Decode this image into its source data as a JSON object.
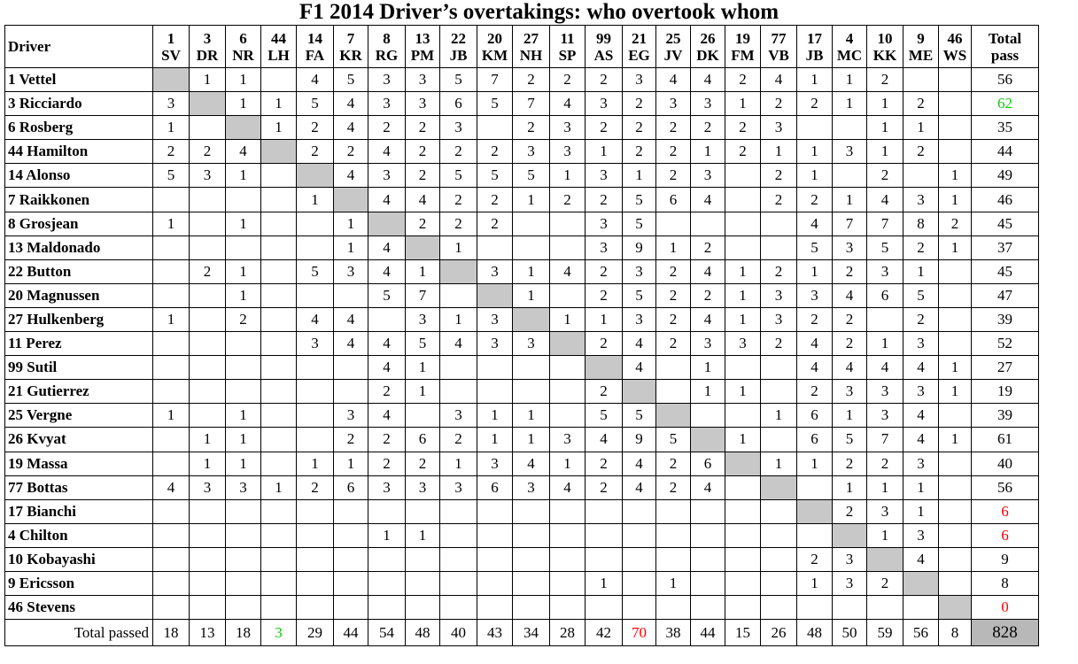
{
  "title": "F1 2014 Driver’s overtakings: who overtook whom",
  "chart_data": {
    "type": "table",
    "header": {
      "driver_label": "Driver",
      "total_label_line1": "Total",
      "total_label_line2": "pass"
    },
    "columns": [
      {
        "num": "1",
        "code": "SV"
      },
      {
        "num": "3",
        "code": "DR"
      },
      {
        "num": "6",
        "code": "NR"
      },
      {
        "num": "44",
        "code": "LH"
      },
      {
        "num": "14",
        "code": "FA"
      },
      {
        "num": "7",
        "code": "KR"
      },
      {
        "num": "8",
        "code": "RG"
      },
      {
        "num": "13",
        "code": "PM"
      },
      {
        "num": "22",
        "code": "JB"
      },
      {
        "num": "20",
        "code": "KM"
      },
      {
        "num": "27",
        "code": "NH"
      },
      {
        "num": "11",
        "code": "SP"
      },
      {
        "num": "99",
        "code": "AS"
      },
      {
        "num": "21",
        "code": "EG"
      },
      {
        "num": "25",
        "code": "JV"
      },
      {
        "num": "26",
        "code": "DK"
      },
      {
        "num": "19",
        "code": "FM"
      },
      {
        "num": "77",
        "code": "VB"
      },
      {
        "num": "17",
        "code": "JB"
      },
      {
        "num": "4",
        "code": "MC"
      },
      {
        "num": "10",
        "code": "KK"
      },
      {
        "num": "9",
        "code": "ME"
      },
      {
        "num": "46",
        "code": "WS"
      }
    ],
    "rows": [
      {
        "driver": "1 Vettel",
        "cells": [
          "",
          "1",
          "1",
          "",
          "4",
          "5",
          "3",
          "3",
          "5",
          "7",
          "2",
          "2",
          "2",
          "3",
          "4",
          "4",
          "2",
          "4",
          "1",
          "1",
          "2",
          "",
          ""
        ],
        "total": "56"
      },
      {
        "driver": "3 Ricciardo",
        "cells": [
          "3",
          "",
          "1",
          "1",
          "5",
          "4",
          "3",
          "3",
          "6",
          "5",
          "7",
          "4",
          "3",
          "2",
          "3",
          "3",
          "1",
          "2",
          "2",
          "1",
          "1",
          "2",
          ""
        ],
        "total": "62"
      },
      {
        "driver": "6 Rosberg",
        "cells": [
          "1",
          "",
          "",
          "1",
          "2",
          "4",
          "2",
          "2",
          "3",
          "",
          "2",
          "3",
          "2",
          "2",
          "2",
          "2",
          "2",
          "3",
          "",
          "",
          "1",
          "1",
          ""
        ],
        "total": "35"
      },
      {
        "driver": "44 Hamilton",
        "cells": [
          "2",
          "2",
          "4",
          "",
          "2",
          "2",
          "4",
          "2",
          "2",
          "2",
          "3",
          "3",
          "1",
          "2",
          "2",
          "1",
          "2",
          "1",
          "1",
          "3",
          "1",
          "2",
          ""
        ],
        "total": "44"
      },
      {
        "driver": "14 Alonso",
        "cells": [
          "5",
          "3",
          "1",
          "",
          "",
          "4",
          "3",
          "2",
          "5",
          "5",
          "5",
          "1",
          "3",
          "1",
          "2",
          "3",
          "",
          "2",
          "1",
          "",
          "2",
          "",
          "1"
        ],
        "total": "49"
      },
      {
        "driver": "7 Raikkonen",
        "cells": [
          "",
          "",
          "",
          "",
          "1",
          "",
          "4",
          "4",
          "2",
          "2",
          "1",
          "2",
          "2",
          "5",
          "6",
          "4",
          "",
          "2",
          "2",
          "1",
          "4",
          "3",
          "1"
        ],
        "total": "46"
      },
      {
        "driver": "8 Grosjean",
        "cells": [
          "1",
          "",
          "1",
          "",
          "",
          "1",
          "",
          "2",
          "2",
          "2",
          "",
          "",
          "3",
          "5",
          "",
          "",
          "",
          "",
          "4",
          "7",
          "7",
          "8",
          "2"
        ],
        "total": "45"
      },
      {
        "driver": "13 Maldonado",
        "cells": [
          "",
          "",
          "",
          "",
          "",
          "1",
          "4",
          "",
          "1",
          "",
          "",
          "",
          "3",
          "9",
          "1",
          "2",
          "",
          "",
          "5",
          "3",
          "5",
          "2",
          "1"
        ],
        "total": "37"
      },
      {
        "driver": "22 Button",
        "cells": [
          "",
          "2",
          "1",
          "",
          "5",
          "3",
          "4",
          "1",
          "",
          "3",
          "1",
          "4",
          "2",
          "3",
          "2",
          "4",
          "1",
          "2",
          "1",
          "2",
          "3",
          "1",
          ""
        ],
        "total": "45"
      },
      {
        "driver": "20 Magnussen",
        "cells": [
          "",
          "",
          "1",
          "",
          "",
          "",
          "5",
          "7",
          "",
          "",
          "1",
          "",
          "2",
          "5",
          "2",
          "2",
          "1",
          "3",
          "3",
          "4",
          "6",
          "5",
          ""
        ],
        "total": "47"
      },
      {
        "driver": "27 Hulkenberg",
        "cells": [
          "1",
          "",
          "2",
          "",
          "4",
          "4",
          "",
          "3",
          "1",
          "3",
          "",
          "1",
          "1",
          "3",
          "2",
          "4",
          "1",
          "3",
          "2",
          "2",
          "",
          "2",
          ""
        ],
        "total": "39"
      },
      {
        "driver": "11 Perez",
        "cells": [
          "",
          "",
          "",
          "",
          "3",
          "4",
          "4",
          "5",
          "4",
          "3",
          "3",
          "",
          "2",
          "4",
          "2",
          "3",
          "3",
          "2",
          "4",
          "2",
          "1",
          "3",
          ""
        ],
        "total": "52"
      },
      {
        "driver": "99 Sutil",
        "cells": [
          "",
          "",
          "",
          "",
          "",
          "",
          "4",
          "1",
          "",
          "",
          "",
          "",
          "",
          "4",
          "",
          "1",
          "",
          "",
          "4",
          "4",
          "4",
          "4",
          "1"
        ],
        "total": "27"
      },
      {
        "driver": "21 Gutierrez",
        "cells": [
          "",
          "",
          "",
          "",
          "",
          "",
          "2",
          "1",
          "",
          "",
          "",
          "",
          "2",
          "",
          "",
          "1",
          "1",
          "",
          "2",
          "3",
          "3",
          "3",
          "1"
        ],
        "total": "19"
      },
      {
        "driver": "25 Vergne",
        "cells": [
          "1",
          "",
          "1",
          "",
          "",
          "3",
          "4",
          "",
          "3",
          "1",
          "1",
          "",
          "5",
          "5",
          "",
          "",
          "",
          "1",
          "6",
          "1",
          "3",
          "4",
          ""
        ],
        "total": "39"
      },
      {
        "driver": "26 Kvyat",
        "cells": [
          "",
          "1",
          "1",
          "",
          "",
          "2",
          "2",
          "6",
          "2",
          "1",
          "1",
          "3",
          "4",
          "9",
          "5",
          "",
          "1",
          "",
          "6",
          "5",
          "7",
          "4",
          "1"
        ],
        "total": "61"
      },
      {
        "driver": "19 Massa",
        "cells": [
          "",
          "1",
          "1",
          "",
          "1",
          "1",
          "2",
          "2",
          "1",
          "3",
          "4",
          "1",
          "2",
          "4",
          "2",
          "6",
          "",
          "1",
          "1",
          "2",
          "2",
          "3",
          ""
        ],
        "total": "40"
      },
      {
        "driver": "77 Bottas",
        "cells": [
          "4",
          "3",
          "3",
          "1",
          "2",
          "6",
          "3",
          "3",
          "3",
          "6",
          "3",
          "4",
          "2",
          "4",
          "2",
          "4",
          "",
          "",
          "",
          "1",
          "1",
          "1",
          ""
        ],
        "total": "56"
      },
      {
        "driver": "17 Bianchi",
        "cells": [
          "",
          "",
          "",
          "",
          "",
          "",
          "",
          "",
          "",
          "",
          "",
          "",
          "",
          "",
          "",
          "",
          "",
          "",
          "",
          "2",
          "3",
          "1",
          ""
        ],
        "total": "6"
      },
      {
        "driver": "4 Chilton",
        "cells": [
          "",
          "",
          "",
          "",
          "",
          "",
          "1",
          "1",
          "",
          "",
          "",
          "",
          "",
          "",
          "",
          "",
          "",
          "",
          "",
          "",
          "1",
          "3",
          ""
        ],
        "total": "6"
      },
      {
        "driver": "10 Kobayashi",
        "cells": [
          "",
          "",
          "",
          "",
          "",
          "",
          "",
          "",
          "",
          "",
          "",
          "",
          "",
          "",
          "",
          "",
          "",
          "",
          "2",
          "3",
          "",
          "4",
          ""
        ],
        "total": "9"
      },
      {
        "driver": "9 Ericsson",
        "cells": [
          "",
          "",
          "",
          "",
          "",
          "",
          "",
          "",
          "",
          "",
          "",
          "",
          "1",
          "",
          "1",
          "",
          "",
          "",
          "1",
          "3",
          "2",
          "",
          ""
        ],
        "total": "8"
      },
      {
        "driver": "46 Stevens",
        "cells": [
          "",
          "",
          "",
          "",
          "",
          "",
          "",
          "",
          "",
          "",
          "",
          "",
          "",
          "",
          "",
          "",
          "",
          "",
          "",
          "",
          "",
          "",
          ""
        ],
        "total": "0"
      }
    ],
    "footer": {
      "label": "Total passed",
      "values": [
        "18",
        "13",
        "18",
        "3",
        "29",
        "44",
        "54",
        "48",
        "40",
        "43",
        "34",
        "28",
        "42",
        "70",
        "38",
        "44",
        "15",
        "26",
        "48",
        "50",
        "59",
        "56",
        "8"
      ],
      "grand_total": "828"
    },
    "highlights": {
      "green_color": "#10c810",
      "red_color": "#ff0000",
      "diagonal_color": "#c8c8c8",
      "row_total_green": [
        1
      ],
      "row_total_red": [
        18,
        19,
        22
      ],
      "col_total_green": [
        3
      ],
      "col_total_red": [
        13
      ]
    }
  }
}
